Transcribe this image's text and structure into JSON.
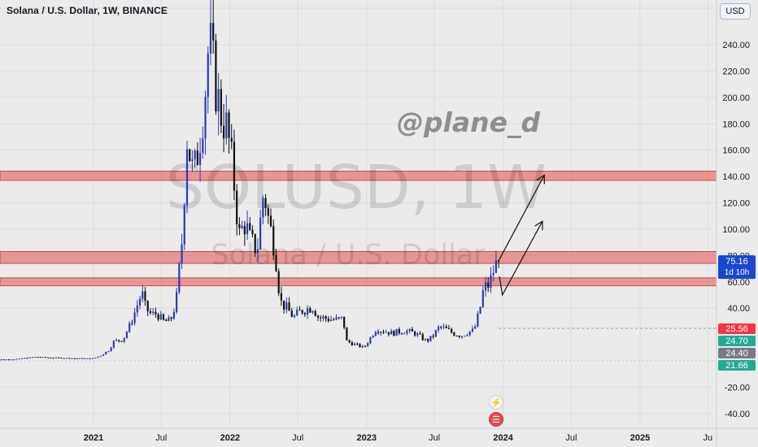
{
  "header": {
    "title": "Solana / U.S. Dollar, 1W, BINANCE",
    "currency_button": "USD"
  },
  "watermark": {
    "symbol": "SOLUSD, 1W",
    "description": "Solana / U.S. Dollar",
    "author": "@plane_d"
  },
  "colors": {
    "background": "#ebebeb",
    "bull_candle": "#2a3bb8",
    "bear_candle": "#111111",
    "zone_fill": "#e07b7b",
    "zone_edge": "#d14545",
    "price_label": "#1848cc",
    "red_label": "#f23645",
    "green_label": "#22ab94"
  },
  "chart_data": {
    "type": "candlestick",
    "title": "Solana / U.S. Dollar, 1W, BINANCE",
    "timeframe": "1W",
    "xlabel": "",
    "ylabel": "",
    "ylim": [
      -48,
      266
    ],
    "grid": true,
    "y_ticks": [
      "-40.00",
      "-20.00",
      "40.00",
      "60.00",
      "80.00",
      "100.00",
      "120.00",
      "140.00",
      "160.00",
      "180.00",
      "200.00",
      "220.00",
      "240.00"
    ],
    "y_tick_values": [
      -40,
      -20,
      40,
      60,
      80,
      100,
      120,
      140,
      160,
      180,
      200,
      220,
      240
    ],
    "x_ticks": [
      {
        "label": "2021",
        "date": "2021-01-01"
      },
      {
        "label": "Jul",
        "date": "2021-07-01"
      },
      {
        "label": "2022",
        "date": "2022-01-01"
      },
      {
        "label": "Jul",
        "date": "2022-07-01"
      },
      {
        "label": "2023",
        "date": "2023-01-01"
      },
      {
        "label": "Jul",
        "date": "2023-07-01"
      },
      {
        "label": "2024",
        "date": "2024-01-01"
      },
      {
        "label": "Jul",
        "date": "2024-07-01"
      },
      {
        "label": "2025",
        "date": "2025-01-01"
      },
      {
        "label": "Ju",
        "date": "2025-07-01"
      }
    ],
    "price_path": [
      [
        "2020-04-01",
        1.0
      ],
      [
        "2020-06-01",
        1.2
      ],
      [
        "2020-08-01",
        3.0
      ],
      [
        "2020-09-01",
        2.5
      ],
      [
        "2020-11-01",
        2.0
      ],
      [
        "2020-12-15",
        1.8
      ],
      [
        "2021-01-01",
        1.8
      ],
      [
        "2021-01-20",
        4
      ],
      [
        "2021-02-10",
        8
      ],
      [
        "2021-02-25",
        15
      ],
      [
        "2021-03-20",
        16
      ],
      [
        "2021-04-10",
        28
      ],
      [
        "2021-04-25",
        40
      ],
      [
        "2021-05-10",
        52
      ],
      [
        "2021-05-20",
        40
      ],
      [
        "2021-06-05",
        35
      ],
      [
        "2021-06-20",
        36
      ],
      [
        "2021-07-05",
        30
      ],
      [
        "2021-07-25",
        30
      ],
      [
        "2021-08-10",
        45
      ],
      [
        "2021-08-25",
        90
      ],
      [
        "2021-09-08",
        170
      ],
      [
        "2021-09-25",
        140
      ],
      [
        "2021-10-10",
        165
      ],
      [
        "2021-10-25",
        200
      ],
      [
        "2021-11-06",
        245
      ],
      [
        "2021-11-20",
        215
      ],
      [
        "2021-12-05",
        190
      ],
      [
        "2021-12-25",
        175
      ],
      [
        "2022-01-10",
        140
      ],
      [
        "2022-01-25",
        95
      ],
      [
        "2022-02-10",
        105
      ],
      [
        "2022-02-25",
        90
      ],
      [
        "2022-03-15",
        85
      ],
      [
        "2022-04-01",
        130
      ],
      [
        "2022-04-15",
        105
      ],
      [
        "2022-05-01",
        85
      ],
      [
        "2022-05-15",
        45
      ],
      [
        "2022-06-01",
        40
      ],
      [
        "2022-06-20",
        33
      ],
      [
        "2022-07-10",
        38
      ],
      [
        "2022-08-10",
        41
      ],
      [
        "2022-08-25",
        33
      ],
      [
        "2022-09-20",
        32
      ],
      [
        "2022-10-15",
        31
      ],
      [
        "2022-10-30",
        32
      ],
      [
        "2022-11-08",
        15
      ],
      [
        "2022-11-25",
        13
      ],
      [
        "2022-12-25",
        10
      ],
      [
        "2023-01-10",
        17
      ],
      [
        "2023-01-25",
        24
      ],
      [
        "2023-02-15",
        23
      ],
      [
        "2023-03-10",
        21
      ],
      [
        "2023-04-10",
        23
      ],
      [
        "2023-05-10",
        21
      ],
      [
        "2023-06-10",
        15
      ],
      [
        "2023-06-25",
        18
      ],
      [
        "2023-07-15",
        26
      ],
      [
        "2023-08-01",
        24
      ],
      [
        "2023-08-20",
        21
      ],
      [
        "2023-09-10",
        19
      ],
      [
        "2023-09-30",
        22
      ],
      [
        "2023-10-15",
        23
      ],
      [
        "2023-10-30",
        38
      ],
      [
        "2023-11-10",
        55
      ],
      [
        "2023-11-25",
        58
      ],
      [
        "2023-12-10",
        72
      ],
      [
        "2023-12-20",
        75.16
      ]
    ],
    "resistance_zones": [
      {
        "low": 137,
        "high": 144
      },
      {
        "low": 74,
        "high": 83
      },
      {
        "low": 57,
        "high": 63
      }
    ],
    "projection_arrows": [
      {
        "from": [
          "2023-12-22",
          77
        ],
        "to": [
          "2024-04-20",
          141
        ]
      },
      {
        "from": [
          "2023-12-22",
          64
        ],
        "to": [
          "2023-12-30",
          50
        ],
        "to2": [
          "2024-04-15",
          106
        ]
      }
    ],
    "dashed_level": 24.7,
    "current_price": {
      "value": 75.16,
      "label": "75.16",
      "countdown": "1d 10h"
    },
    "price_labels": [
      {
        "value": 25.56,
        "label": "25.56",
        "color": "#f23645"
      },
      {
        "value": 24.7,
        "label": "24.70",
        "color": "#22ab94"
      },
      {
        "value": 24.4,
        "label": "24.40",
        "color": "#787b86"
      },
      {
        "value": 21.66,
        "label": "21.66",
        "color": "#22ab94"
      }
    ]
  }
}
